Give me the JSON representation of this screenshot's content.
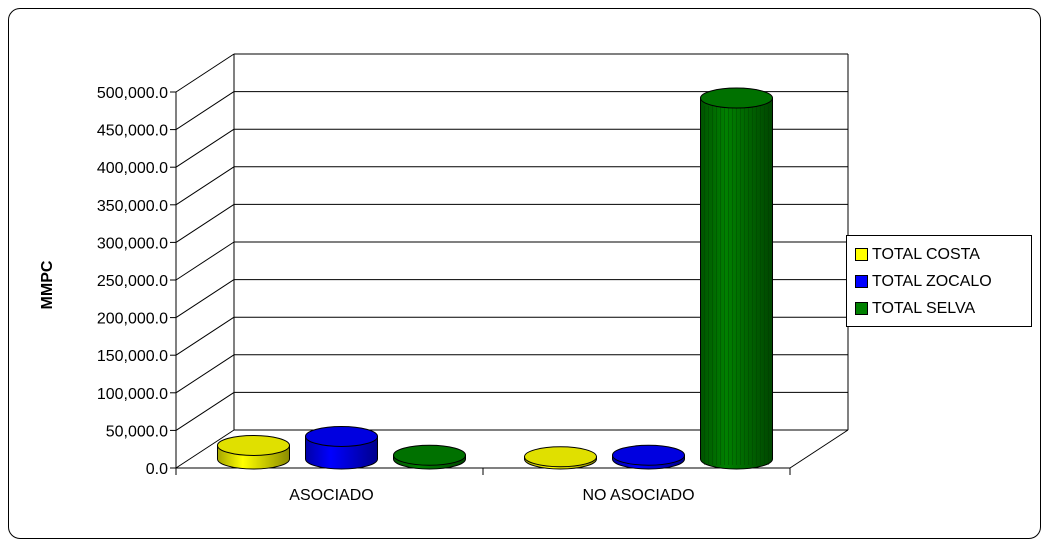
{
  "chart_data": {
    "type": "bar",
    "style": "3d-cylinder",
    "categories": [
      "ASOCIADO",
      "NO ASOCIADO"
    ],
    "series": [
      {
        "name": "TOTAL COSTA",
        "color": "#ffff00",
        "values": [
          18000,
          3000
        ]
      },
      {
        "name": "TOTAL ZOCALO",
        "color": "#0000ff",
        "values": [
          30000,
          5000
        ]
      },
      {
        "name": "TOTAL SELVA",
        "color": "#008000",
        "values": [
          5000,
          480000
        ]
      }
    ],
    "ylabel": "MMPC",
    "ylim": [
      0,
      500000
    ],
    "yticks": [
      "0.0",
      "50,000.0",
      "100,000.0",
      "150,000.0",
      "200,000.0",
      "250,000.0",
      "300,000.0",
      "350,000.0",
      "400,000.0",
      "450,000.0",
      "500,000.0"
    ],
    "grid": true,
    "legend_position": "right"
  }
}
